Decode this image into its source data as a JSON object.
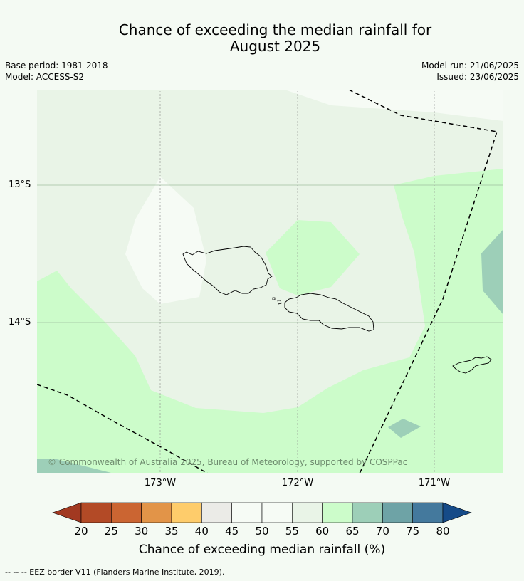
{
  "title": {
    "line1": "Chance of exceeding the median rainfall for",
    "line2": "August 2025"
  },
  "meta": {
    "base_period": "Base period: 1981-2018",
    "model": "Model: ACCESS-S2",
    "model_run": "Model run: 21/06/2025",
    "issued": "Issued: 23/06/2025"
  },
  "map": {
    "latitude_labels": [
      "13°S",
      "14°S"
    ],
    "longitude_labels": [
      "173°W",
      "172°W",
      "171°W"
    ],
    "copyright": "© Commonwealth of Australia 2025, Bureau of Meteorology, supported by COSPPac",
    "region_colors": {
      "45-50": "#f6fbf5",
      "55-60": "#e9f4e7",
      "60-65": "#ccfcca",
      "65-70": "#9dcfb8"
    }
  },
  "colorbar": {
    "tick_labels": [
      "20",
      "25",
      "30",
      "35",
      "40",
      "45",
      "50",
      "55",
      "60",
      "65",
      "70",
      "75",
      "80"
    ],
    "colors": [
      "#a23921",
      "#b34a26",
      "#cb6532",
      "#e29448",
      "#fecc6b",
      "#ebebe7",
      "#f6fbf5",
      "#f6fbf5",
      "#e9f4e7",
      "#ccfcca",
      "#9dcfb8",
      "#6ea3a6",
      "#44799d",
      "#164b88"
    ],
    "label": "Chance of exceeding median rainfall (%)"
  },
  "footnote": "--  --  -- EEZ border V11 (Flanders Marine Institute, 2019)."
}
